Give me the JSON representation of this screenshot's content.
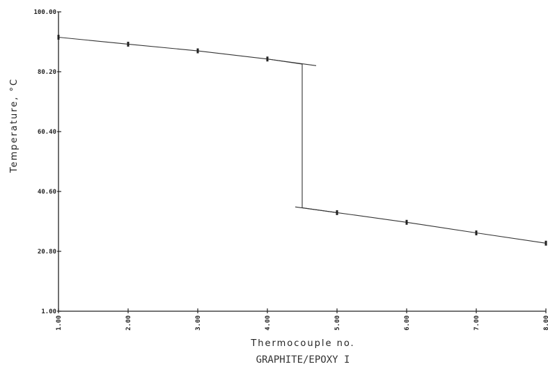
{
  "chart_data": {
    "type": "line",
    "xlabel": "Thermocouple no.",
    "ylabel": "Temperature, °C",
    "caption": "GRAPHITE/EPOXY I",
    "xlim": [
      1,
      8
    ],
    "ylim": [
      1,
      100
    ],
    "x_ticks": [
      1,
      2,
      3,
      4,
      5,
      6,
      7,
      8
    ],
    "x_tick_labels": [
      "1.00",
      "2.00",
      "3.00",
      "4.00",
      "5.00",
      "6.00",
      "7.00",
      "8.00"
    ],
    "y_ticks": [
      1,
      20.8,
      40.6,
      60.4,
      80.2,
      100
    ],
    "y_tick_labels": [
      "1.00",
      "20.80",
      "40.60",
      "60.40",
      "80.20",
      "100.00"
    ],
    "grid": false,
    "series": [
      {
        "x": [
          1,
          2,
          3,
          4,
          4.5,
          4.5,
          5,
          6,
          7,
          8
        ],
        "y": [
          91.6,
          89.3,
          87.1,
          84.4,
          82.7,
          35.2,
          33.6,
          30.4,
          26.9,
          23.5
        ]
      }
    ],
    "markers": {
      "x": [
        1,
        2,
        3,
        4,
        5,
        6,
        7,
        8
      ],
      "y": [
        91.6,
        89.3,
        87.1,
        84.4,
        33.6,
        30.4,
        26.9,
        23.5
      ]
    },
    "segment_extensions": [
      {
        "x": [
          4,
          4.7
        ],
        "y": [
          84.4,
          82.2
        ]
      },
      {
        "x": [
          4.4,
          5
        ],
        "y": [
          35.5,
          33.6
        ]
      }
    ]
  }
}
